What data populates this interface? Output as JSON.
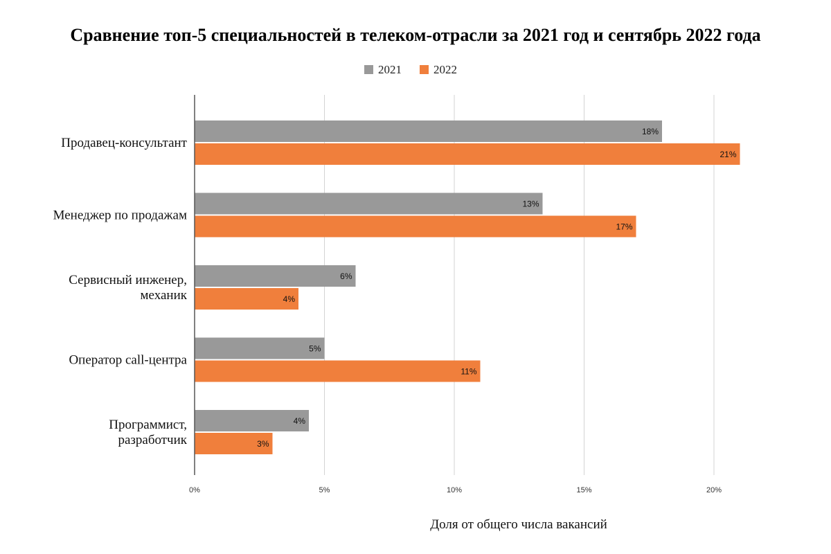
{
  "chart_data": {
    "type": "bar",
    "orientation": "horizontal",
    "title": "Сравнение топ-5 специальностей в телеком-отрасли за 2021 год и сентябрь 2022 года",
    "xlabel": "Доля от общего числа вакансий",
    "ylabel": "",
    "categories": [
      [
        "Продавец-консультант"
      ],
      [
        "Менеджер по продажам"
      ],
      [
        "Сервисный инженер,",
        "механик"
      ],
      [
        "Оператор call-центра"
      ],
      [
        "Программист,",
        "разработчик"
      ]
    ],
    "series": [
      {
        "name": "2021",
        "color": "#999999",
        "values": [
          18,
          13.4,
          6.2,
          5,
          4.4
        ],
        "labels": [
          "18%",
          "13%",
          "6%",
          "5%",
          "4%"
        ]
      },
      {
        "name": "2022",
        "color": "#f07f3c",
        "values": [
          21,
          17,
          4,
          11,
          3
        ],
        "labels": [
          "21%",
          "17%",
          "4%",
          "11%",
          "3%"
        ]
      }
    ],
    "xlim": [
      0,
      20
    ],
    "xticks": [
      0,
      5,
      10,
      15,
      20
    ],
    "xtick_labels": [
      "0%",
      "5%",
      "10%",
      "15%",
      "20%"
    ],
    "grid": "vertical",
    "legend_position": "top-center"
  }
}
